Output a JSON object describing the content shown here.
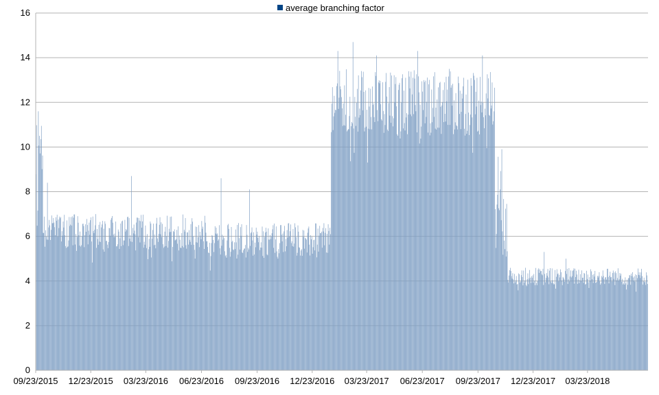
{
  "chart_data": {
    "type": "bar",
    "title": "",
    "xlabel": "",
    "ylabel": "",
    "ylim": [
      0,
      16
    ],
    "yticks": [
      0,
      2,
      4,
      6,
      8,
      10,
      12,
      14,
      16
    ],
    "x_range": [
      "2015-09-23",
      "2018-06-30"
    ],
    "xtick_labels": [
      "09/23/2015",
      "12/23/2015",
      "03/23/2016",
      "06/23/2016",
      "09/23/2016",
      "12/23/2016",
      "03/23/2017",
      "06/23/2017",
      "09/23/2017",
      "12/23/2017",
      "03/23/2018"
    ],
    "grid": true,
    "legend_position": "top-center",
    "series": [
      {
        "name": "average branching factor",
        "color": "#7f9fc4",
        "legend_color": "#004586",
        "daily_level_segments": [
          {
            "from": "2015-09-23",
            "to": "2015-10-04",
            "mean": 8.6,
            "spread": 2.4
          },
          {
            "from": "2015-10-05",
            "to": "2016-06-30",
            "mean": 6.2,
            "spread": 0.8
          },
          {
            "from": "2016-07-01",
            "to": "2017-01-22",
            "mean": 5.8,
            "spread": 0.8
          },
          {
            "from": "2017-01-23",
            "to": "2017-10-20",
            "mean": 12.0,
            "spread": 1.5
          },
          {
            "from": "2017-10-21",
            "to": "2017-11-10",
            "mean": 7.5,
            "spread": 2.5
          },
          {
            "from": "2017-11-11",
            "to": "2018-06-30",
            "mean": 4.2,
            "spread": 0.4
          }
        ],
        "peaks": [
          {
            "date": "2015-09-27",
            "value": 11.6
          },
          {
            "date": "2015-09-29",
            "value": 10.5
          },
          {
            "date": "2015-10-12",
            "value": 8.4
          },
          {
            "date": "2016-02-28",
            "value": 8.7
          },
          {
            "date": "2016-07-25",
            "value": 8.6
          },
          {
            "date": "2016-09-10",
            "value": 8.1
          },
          {
            "date": "2017-02-03",
            "value": 14.3
          },
          {
            "date": "2017-02-28",
            "value": 14.7
          },
          {
            "date": "2017-04-08",
            "value": 14.1
          },
          {
            "date": "2017-06-15",
            "value": 14.3
          },
          {
            "date": "2017-09-30",
            "value": 14.1
          },
          {
            "date": "2018-01-10",
            "value": 5.3
          },
          {
            "date": "2018-02-15",
            "value": 5.0
          }
        ]
      }
    ]
  }
}
